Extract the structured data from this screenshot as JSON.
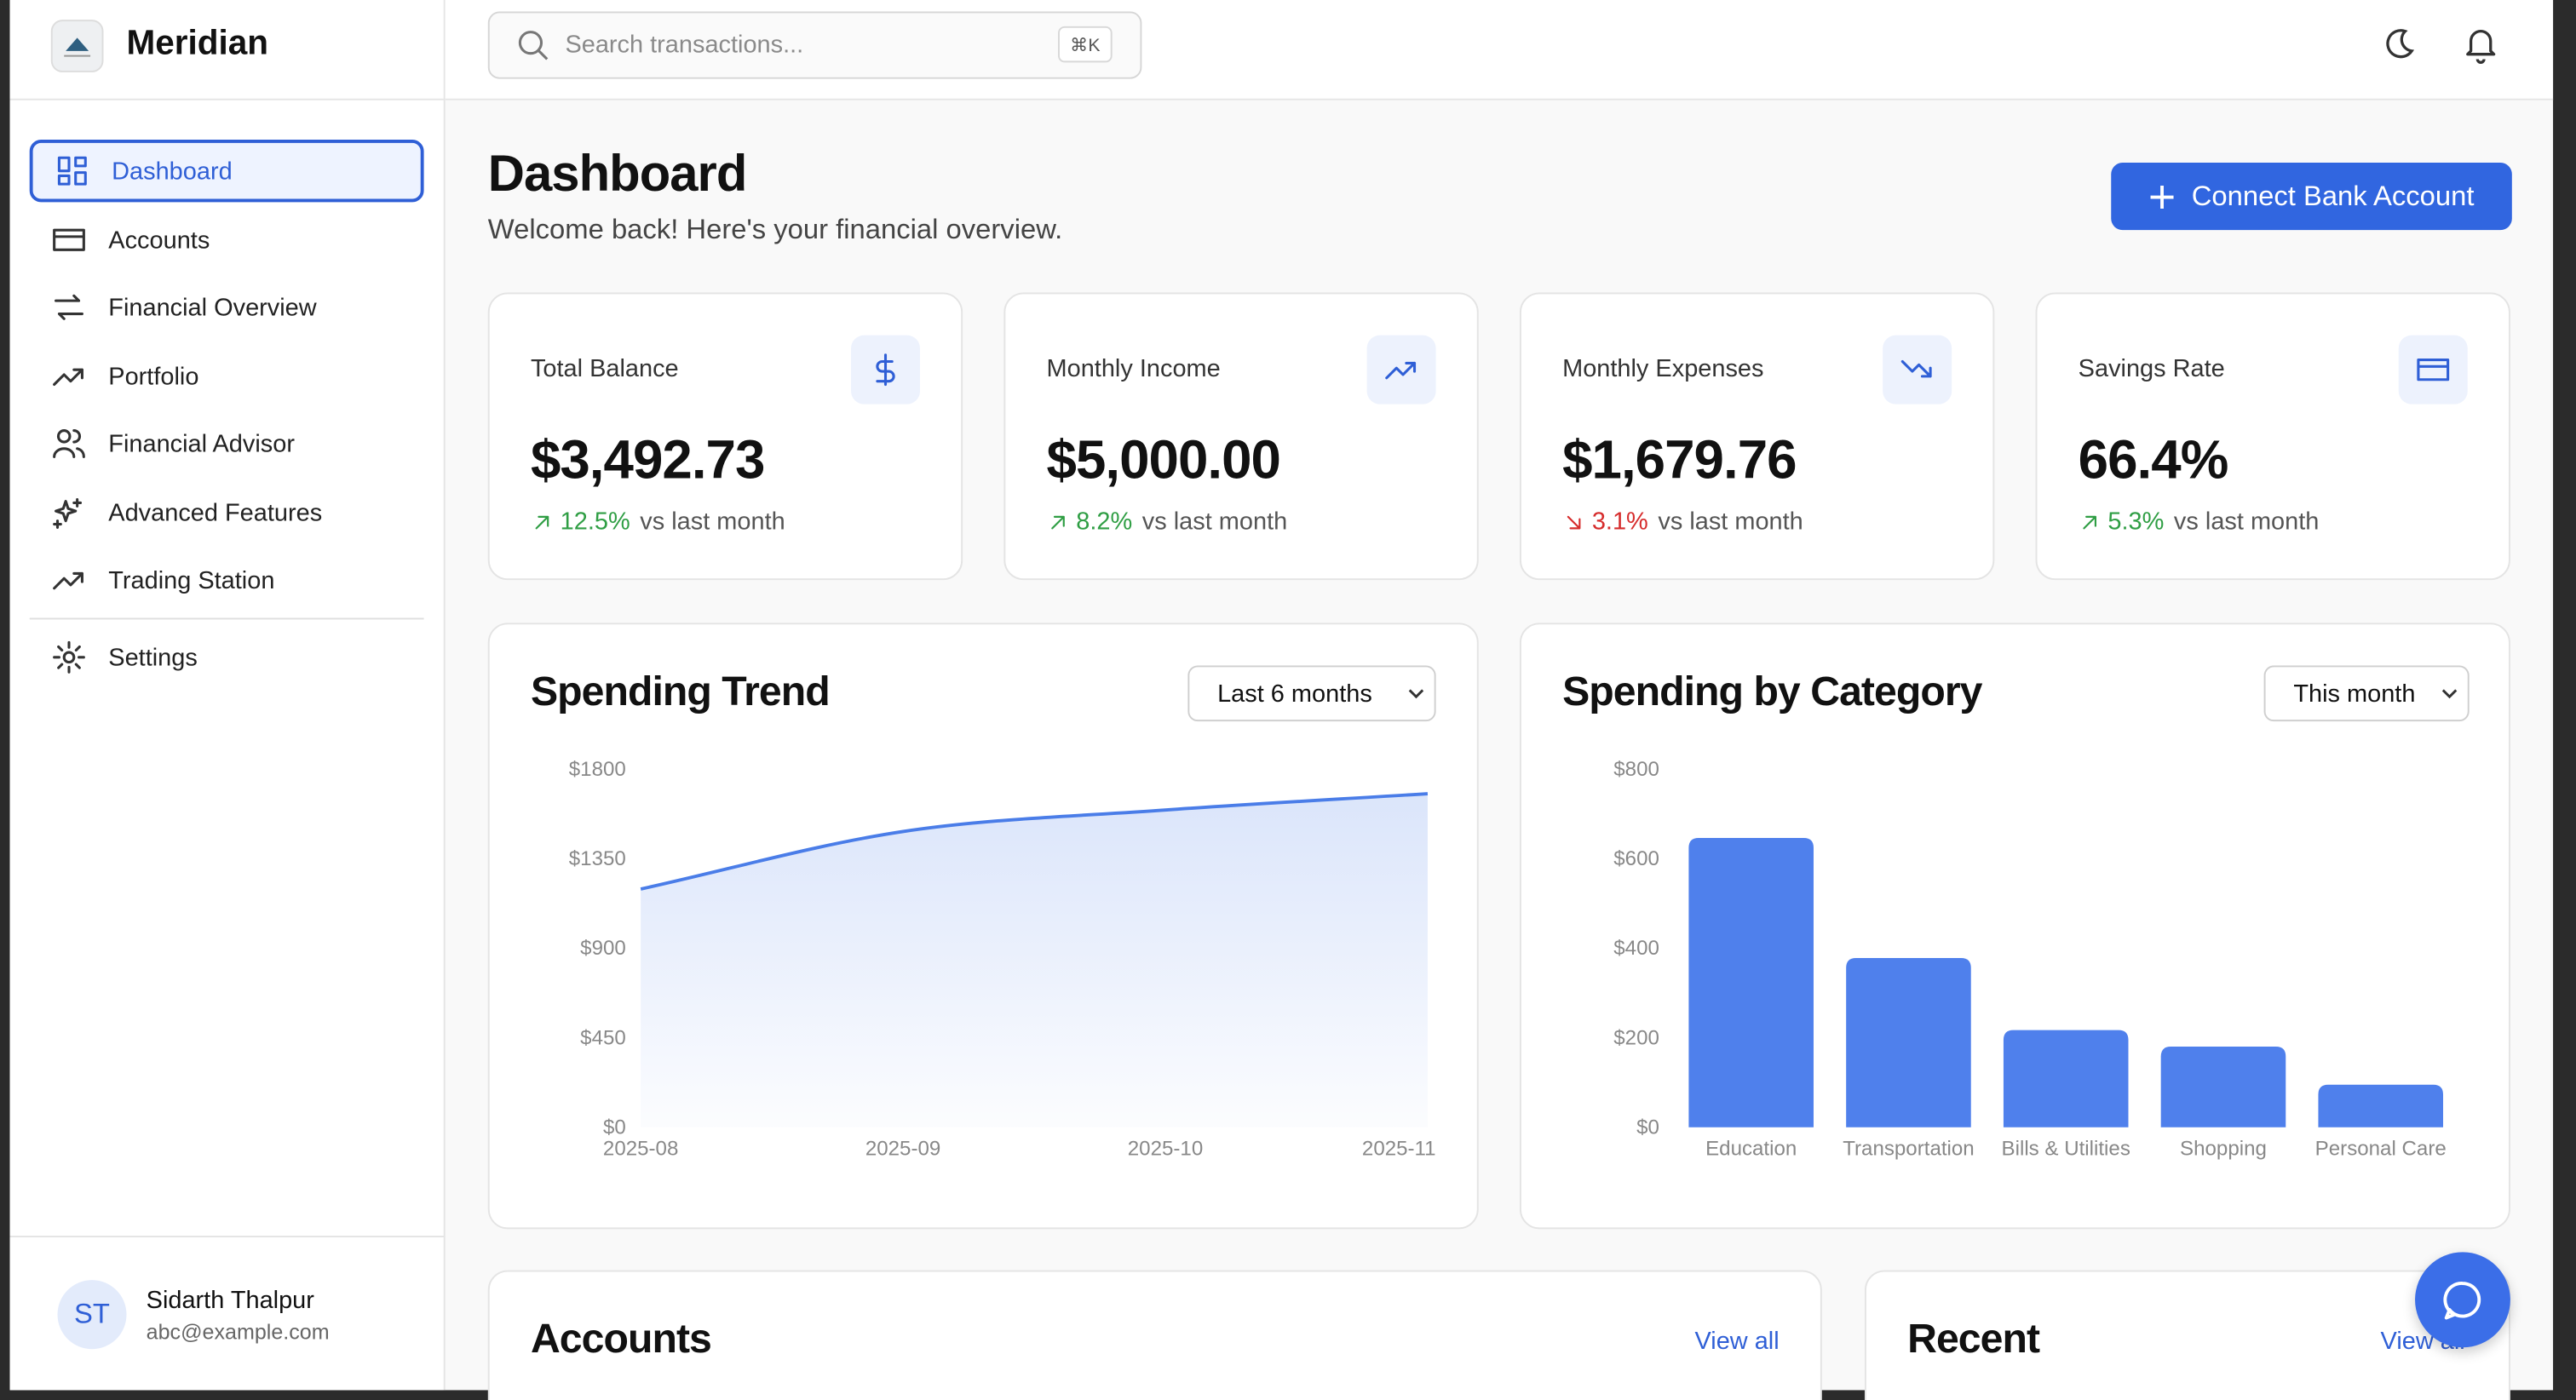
{
  "app": {
    "name": "Meridian"
  },
  "nav": [
    "Dashboard",
    "Accounts",
    "Financial Overview",
    "Portfolio",
    "Financial Advisor",
    "Advanced Features",
    "Trading Station",
    "Settings"
  ],
  "user": {
    "initials": "ST",
    "name": "Sidarth Thalpur",
    "email": "abc@example.com"
  },
  "search": {
    "placeholder": "Search transactions...",
    "shortcut": "⌘K"
  },
  "page": {
    "title": "Dashboard",
    "subtitle": "Welcome back! Here's your financial overview.",
    "action": "Connect Bank Account"
  },
  "stats": [
    {
      "label": "Total Balance",
      "value": "$3,492.73",
      "change": "12.5%",
      "note": "vs last month",
      "direction": "up"
    },
    {
      "label": "Monthly Income",
      "value": "$5,000.00",
      "change": "8.2%",
      "note": "vs last month",
      "direction": "up"
    },
    {
      "label": "Monthly Expenses",
      "value": "$1,679.76",
      "change": "3.1%",
      "note": "vs last month",
      "direction": "down"
    },
    {
      "label": "Savings Rate",
      "value": "66.4%",
      "change": "5.3%",
      "note": "vs last month",
      "direction": "up"
    }
  ],
  "spending_trend": {
    "type": "area",
    "title": "Spending Trend",
    "filter": "Last 6 months",
    "x": [
      "2025-08",
      "2025-09",
      "2025-10",
      "2025-11"
    ],
    "values": [
      1197,
      1486,
      1594,
      1676
    ],
    "ylim": [
      0,
      1800
    ],
    "yticks": [
      {
        "value": 0,
        "label": "$0"
      },
      {
        "value": 450,
        "label": "$450"
      },
      {
        "value": 900,
        "label": "$900"
      },
      {
        "value": 1350,
        "label": "$1350"
      },
      {
        "value": 1800,
        "label": "$1800"
      }
    ],
    "color": "#4a7de8"
  },
  "spending_by_category": {
    "type": "bar",
    "title": "Spending by Category",
    "filter": "This month",
    "categories": [
      "Education",
      "Transportation",
      "Bills & Utilities",
      "Shopping",
      "Personal Care"
    ],
    "values": [
      646,
      378,
      217,
      180,
      95
    ],
    "ylim": [
      0,
      800
    ],
    "yticks": [
      {
        "value": 0,
        "label": "$0"
      },
      {
        "value": 200,
        "label": "$200"
      },
      {
        "value": 400,
        "label": "$400"
      },
      {
        "value": 600,
        "label": "$600"
      },
      {
        "value": 800,
        "label": "$800"
      }
    ],
    "color": "#4f80ec"
  },
  "accounts": {
    "title": "Accounts",
    "link": "View all"
  },
  "recent": {
    "title": "Recent",
    "link": "View all"
  }
}
